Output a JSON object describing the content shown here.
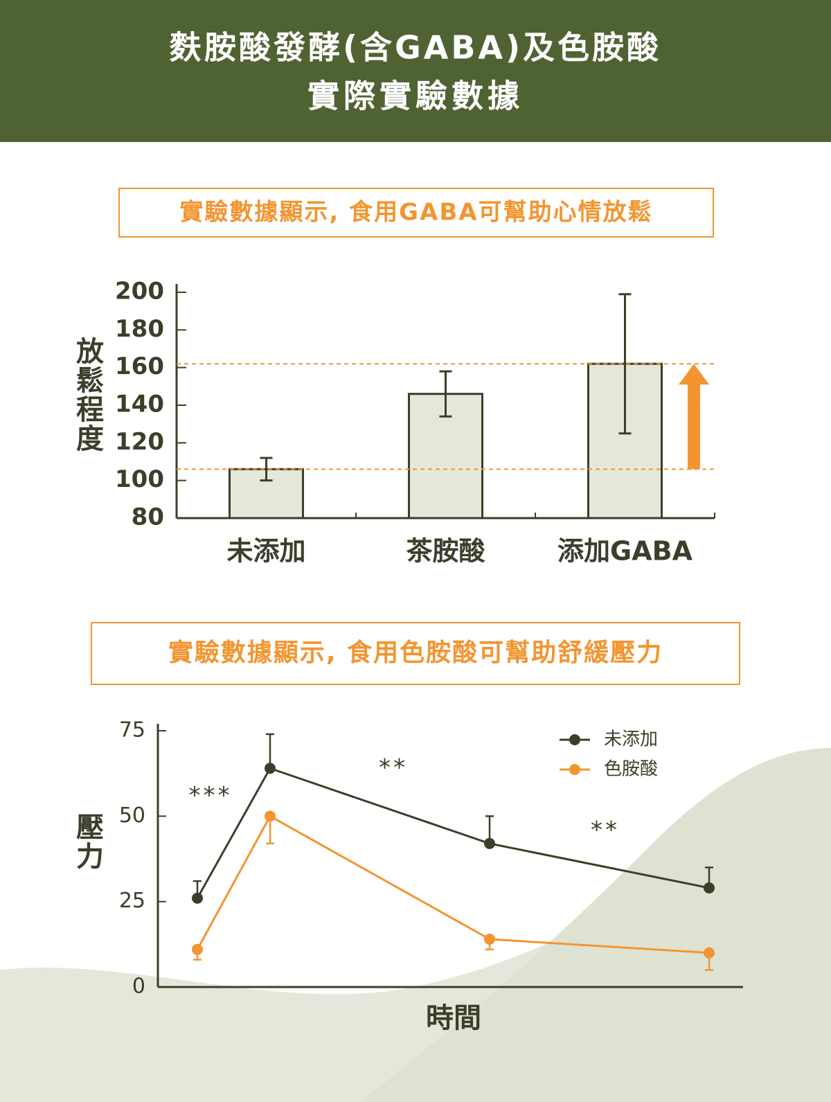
{
  "title_lines": [
    "麩胺酸發酵(含GABA)及色胺酸",
    "實際實驗數據"
  ],
  "chart_data": [
    {
      "type": "bar",
      "title": "實驗數據顯示, 食用GABA可幫助心情放鬆",
      "ylabel": "放鬆程度",
      "categories": [
        "未添加",
        "茶胺酸",
        "添加GABA"
      ],
      "values": [
        106,
        146,
        162
      ],
      "errors": [
        6,
        12,
        37
      ],
      "color": "#e3e8da",
      "edge_color": "#3a3f2a",
      "reference_color": "#f29531",
      "ylim": [
        80,
        200
      ],
      "yticks": [
        80,
        100,
        120,
        140,
        160,
        180,
        200
      ]
    },
    {
      "type": "line",
      "title": "實驗數據顯示, 食用色胺酸可幫助舒緩壓力",
      "ylabel": "壓力",
      "xlabel": "時間",
      "categories": [
        null,
        null,
        null,
        null
      ],
      "series": [
        {
          "name": "未添加",
          "color": "#3a3f2a",
          "values": [
            26,
            64,
            42,
            29
          ],
          "errors": [
            5,
            10,
            8,
            6
          ],
          "error_direction": "up"
        },
        {
          "name": "色胺酸",
          "color": "#f29531",
          "values": [
            11,
            50,
            14,
            10
          ],
          "errors": [
            3,
            8,
            3,
            5
          ],
          "error_direction": "down"
        }
      ],
      "annotations": [
        "***",
        "**",
        "**"
      ],
      "legend": "upper right",
      "ylim": [
        0,
        75
      ],
      "yticks": [
        0,
        25,
        50,
        75
      ]
    }
  ]
}
